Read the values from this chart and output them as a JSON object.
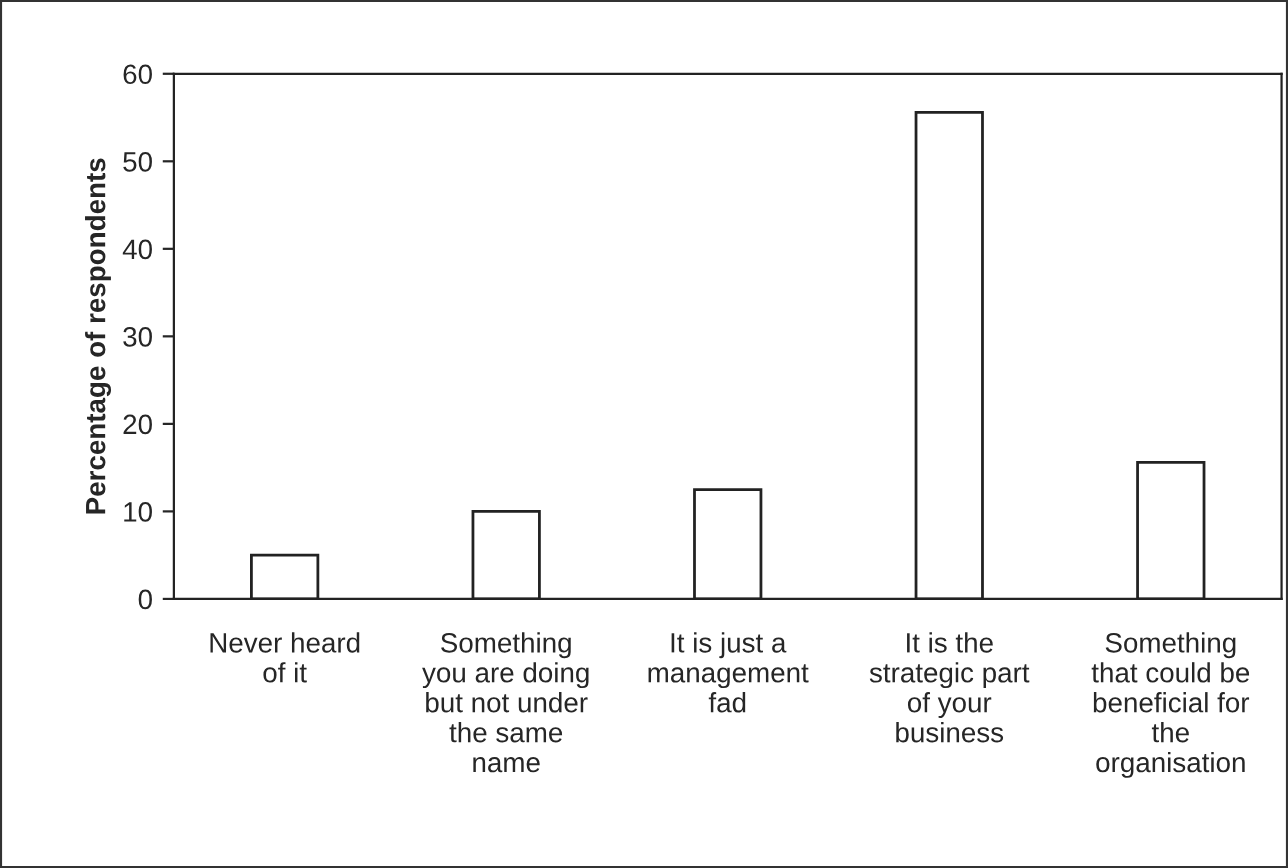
{
  "chart_data": {
    "type": "bar",
    "ylabel": "Percentage of respondents",
    "categories": [
      "Never heard\nof it",
      "Something\nyou are doing\nbut not under\nthe same\nname",
      "It is just a\nmanagement\nfad",
      "It is the\nstrategic part\nof your\nbusiness",
      "Something\nthat could be\nbeneficial for\nthe\norganisation"
    ],
    "values": [
      5.0,
      10.0,
      12.5,
      55.6,
      15.6
    ],
    "color": "#ffffff",
    "ylim": [
      0,
      60
    ],
    "yticks": [
      0,
      10,
      20,
      30,
      40,
      50,
      60
    ],
    "grid": false,
    "legend": false
  }
}
